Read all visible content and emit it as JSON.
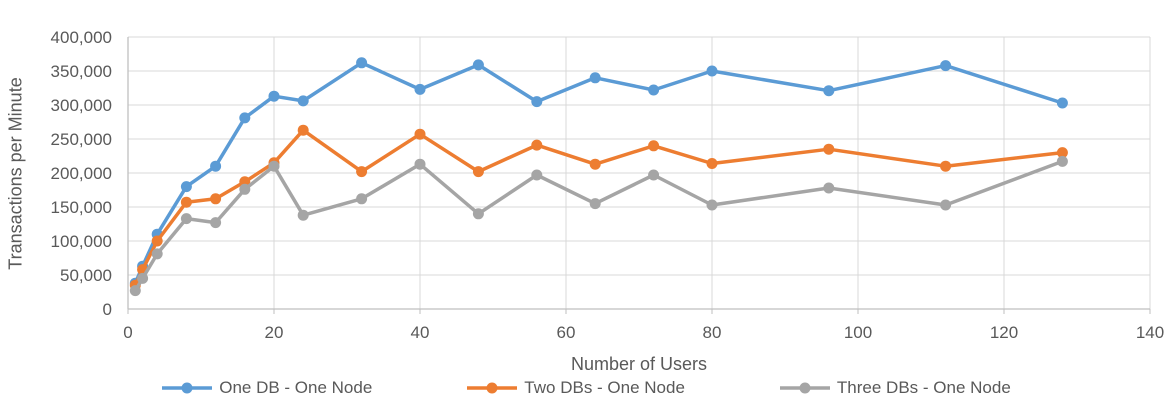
{
  "chart_data": {
    "type": "line",
    "title": "",
    "xlabel": "Number of Users",
    "ylabel": "Transactions per Minute",
    "x": [
      1,
      2,
      4,
      8,
      12,
      16,
      20,
      24,
      32,
      40,
      48,
      56,
      64,
      72,
      80,
      96,
      112,
      128
    ],
    "series": [
      {
        "name": "One DB - One Node",
        "color": "#5B9BD5",
        "values": [
          38000,
          63000,
          110000,
          180000,
          210000,
          281000,
          313000,
          306000,
          362000,
          323000,
          359000,
          305000,
          340000,
          322000,
          350000,
          321000,
          358000,
          303000
        ]
      },
      {
        "name": "Two DBs - One Node",
        "color": "#ED7D31",
        "values": [
          35000,
          58000,
          100000,
          157000,
          162000,
          187000,
          215000,
          263000,
          202000,
          257000,
          202000,
          241000,
          213000,
          240000,
          214000,
          235000,
          210000,
          230000
        ]
      },
      {
        "name": "Three DBs - One Node",
        "color": "#A5A5A5",
        "values": [
          27000,
          45000,
          81000,
          133000,
          127000,
          176000,
          210000,
          138000,
          162000,
          213000,
          140000,
          197000,
          155000,
          197000,
          153000,
          178000,
          153000,
          217000
        ]
      }
    ],
    "xlim": [
      0,
      140
    ],
    "ylim": [
      0,
      400000
    ],
    "x_ticks": [
      0,
      20,
      40,
      60,
      80,
      100,
      120,
      140
    ],
    "y_ticks": [
      "0",
      "50,000",
      "100,000",
      "150,000",
      "200,000",
      "250,000",
      "300,000",
      "350,000",
      "400,000"
    ],
    "y_tick_step": 50000,
    "grid": true,
    "legend_position": "bottom",
    "gridline_color": "#d9d9d9",
    "axis_line_color": "#bfbfbf",
    "text_color": "#595959"
  }
}
